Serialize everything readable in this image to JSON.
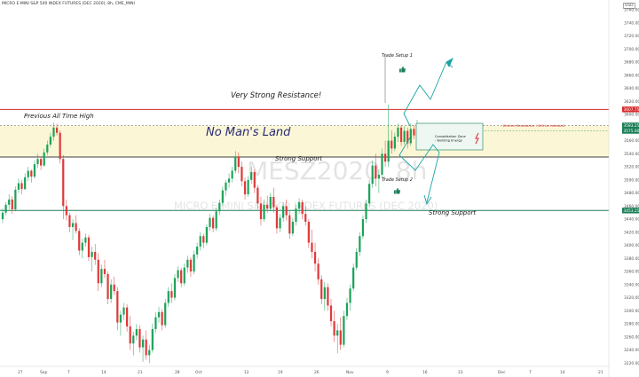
{
  "header": {
    "title": "MICRO E-MINI S&P 500 INDEX FUTURES (DEC 2020), 8h, CME_MINI",
    "currency": "USD"
  },
  "watermark": {
    "symbol": "MESZ2020, 8h",
    "name": "MICRO E-MINI S&P 500 INDEX FUTURES (DEC 2020)"
  },
  "chart_data": {
    "type": "candlestick",
    "y_ticks": [
      3220,
      3240,
      3260,
      3280,
      3300,
      3320,
      3340,
      3360,
      3380,
      3400,
      3420,
      3440,
      3460,
      3480,
      3500,
      3520,
      3540,
      3560,
      3580,
      3600,
      3620,
      3640,
      3660,
      3680,
      3700,
      3720,
      3740,
      3760
    ],
    "ylim": [
      3215,
      3775
    ],
    "x_tick_labels": [
      "27",
      "Sep",
      "7",
      "14",
      "21",
      "28",
      "Oct",
      "12",
      "19",
      "26",
      "Nov",
      "9",
      "16",
      "23",
      "Dec",
      "7",
      "14",
      "21"
    ],
    "price_tags": [
      {
        "value": "3607.75",
        "price": 3607.75,
        "color": "#d62b2b"
      },
      {
        "value": "3583.25",
        "price": 3583.25,
        "color": "#1b7d56"
      },
      {
        "value": "3575.00",
        "price": 3575.0,
        "color": "#1b7d56"
      },
      {
        "value": "3453.25",
        "price": 3453.25,
        "color": "#1b7d56"
      }
    ],
    "levels": [
      {
        "label": "Very Strong Resistance!",
        "price": 3607.75,
        "color": "#d62b2b"
      },
      {
        "label": "Strong Support",
        "price": 3535,
        "color": "#000000"
      },
      {
        "label": "Strong Support",
        "price": 3453.25,
        "color": "#1b7d56"
      }
    ],
    "zone": {
      "label": "No Man's Land",
      "top": 3583,
      "bottom": 3535
    },
    "annotations": {
      "all_time_high": "Previous All Time High",
      "trade_setup_1": "Trade Setup 1",
      "trade_setup_2": "Trade Setup 2",
      "broken_resistance": "Broken Resistance - Will be retested",
      "consolidation_line1": "Consolidation Zone",
      "consolidation_line2": "- Building Energy"
    },
    "colors": {
      "up": "#1ea35a",
      "down": "#e03a3a"
    },
    "ohlc": [
      [
        3440,
        3456,
        3434,
        3450
      ],
      [
        3450,
        3466,
        3446,
        3462
      ],
      [
        3462,
        3478,
        3455,
        3470
      ],
      [
        3470,
        3475,
        3448,
        3455
      ],
      [
        3455,
        3490,
        3452,
        3485
      ],
      [
        3485,
        3502,
        3480,
        3495
      ],
      [
        3495,
        3500,
        3478,
        3486
      ],
      [
        3486,
        3510,
        3484,
        3504
      ],
      [
        3504,
        3520,
        3498,
        3514
      ],
      [
        3514,
        3516,
        3496,
        3505
      ],
      [
        3505,
        3530,
        3502,
        3524
      ],
      [
        3524,
        3540,
        3518,
        3532
      ],
      [
        3532,
        3535,
        3515,
        3522
      ],
      [
        3522,
        3548,
        3520,
        3542
      ],
      [
        3542,
        3560,
        3538,
        3554
      ],
      [
        3554,
        3572,
        3550,
        3566
      ],
      [
        3566,
        3588,
        3560,
        3580
      ],
      [
        3580,
        3586,
        3568,
        3572
      ],
      [
        3572,
        3576,
        3525,
        3532
      ],
      [
        3532,
        3538,
        3440,
        3460
      ],
      [
        3460,
        3470,
        3438,
        3446
      ],
      [
        3446,
        3450,
        3420,
        3428
      ],
      [
        3428,
        3440,
        3408,
        3434
      ],
      [
        3434,
        3446,
        3418,
        3422
      ],
      [
        3422,
        3426,
        3385,
        3392
      ],
      [
        3392,
        3410,
        3380,
        3404
      ],
      [
        3404,
        3418,
        3398,
        3412
      ],
      [
        3412,
        3416,
        3376,
        3382
      ],
      [
        3382,
        3398,
        3360,
        3390
      ],
      [
        3390,
        3402,
        3370,
        3378
      ],
      [
        3378,
        3388,
        3330,
        3342
      ],
      [
        3342,
        3370,
        3336,
        3364
      ],
      [
        3364,
        3378,
        3350,
        3356
      ],
      [
        3356,
        3360,
        3310,
        3318
      ],
      [
        3318,
        3348,
        3312,
        3340
      ],
      [
        3340,
        3352,
        3324,
        3330
      ],
      [
        3330,
        3336,
        3270,
        3282
      ],
      [
        3282,
        3300,
        3262,
        3294
      ],
      [
        3294,
        3312,
        3286,
        3305
      ],
      [
        3305,
        3310,
        3268,
        3276
      ],
      [
        3276,
        3292,
        3240,
        3250
      ],
      [
        3250,
        3268,
        3232,
        3262
      ],
      [
        3262,
        3280,
        3255,
        3272
      ],
      [
        3272,
        3278,
        3236,
        3244
      ],
      [
        3244,
        3262,
        3222,
        3256
      ],
      [
        3256,
        3270,
        3225,
        3232
      ],
      [
        3232,
        3248,
        3220,
        3240
      ],
      [
        3240,
        3280,
        3236,
        3272
      ],
      [
        3272,
        3298,
        3266,
        3290
      ],
      [
        3290,
        3306,
        3282,
        3298
      ],
      [
        3298,
        3302,
        3270,
        3278
      ],
      [
        3278,
        3318,
        3274,
        3312
      ],
      [
        3312,
        3336,
        3306,
        3330
      ],
      [
        3330,
        3342,
        3312,
        3320
      ],
      [
        3320,
        3356,
        3316,
        3350
      ],
      [
        3350,
        3368,
        3344,
        3362
      ],
      [
        3362,
        3366,
        3336,
        3342
      ],
      [
        3342,
        3372,
        3338,
        3366
      ],
      [
        3366,
        3384,
        3358,
        3378
      ],
      [
        3378,
        3382,
        3352,
        3360
      ],
      [
        3360,
        3392,
        3356,
        3386
      ],
      [
        3386,
        3404,
        3380,
        3398
      ],
      [
        3398,
        3420,
        3392,
        3414
      ],
      [
        3414,
        3418,
        3396,
        3404
      ],
      [
        3404,
        3432,
        3400,
        3428
      ],
      [
        3428,
        3448,
        3422,
        3442
      ],
      [
        3442,
        3446,
        3420,
        3426
      ],
      [
        3426,
        3458,
        3422,
        3452
      ],
      [
        3452,
        3470,
        3446,
        3465
      ],
      [
        3465,
        3490,
        3460,
        3484
      ],
      [
        3484,
        3500,
        3476,
        3496
      ],
      [
        3496,
        3510,
        3488,
        3502
      ],
      [
        3502,
        3520,
        3496,
        3514
      ],
      [
        3514,
        3544,
        3510,
        3536
      ],
      [
        3536,
        3542,
        3510,
        3520
      ],
      [
        3520,
        3528,
        3490,
        3498
      ],
      [
        3498,
        3504,
        3470,
        3478
      ],
      [
        3478,
        3506,
        3474,
        3500
      ],
      [
        3500,
        3520,
        3494,
        3512
      ],
      [
        3512,
        3516,
        3480,
        3488
      ],
      [
        3488,
        3492,
        3456,
        3464
      ],
      [
        3464,
        3474,
        3430,
        3440
      ],
      [
        3440,
        3470,
        3436,
        3462
      ],
      [
        3462,
        3476,
        3450,
        3456
      ],
      [
        3456,
        3480,
        3452,
        3474
      ],
      [
        3474,
        3488,
        3450,
        3458
      ],
      [
        3458,
        3462,
        3418,
        3426
      ],
      [
        3426,
        3448,
        3420,
        3442
      ],
      [
        3442,
        3466,
        3436,
        3460
      ],
      [
        3460,
        3470,
        3438,
        3446
      ],
      [
        3446,
        3452,
        3410,
        3418
      ],
      [
        3418,
        3442,
        3414,
        3436
      ],
      [
        3436,
        3462,
        3430,
        3456
      ],
      [
        3456,
        3472,
        3448,
        3466
      ],
      [
        3466,
        3470,
        3440,
        3448
      ],
      [
        3448,
        3460,
        3430,
        3436
      ],
      [
        3436,
        3440,
        3396,
        3404
      ],
      [
        3404,
        3424,
        3380,
        3390
      ],
      [
        3390,
        3404,
        3360,
        3372
      ],
      [
        3372,
        3380,
        3340,
        3348
      ],
      [
        3348,
        3354,
        3310,
        3318
      ],
      [
        3318,
        3344,
        3300,
        3336
      ],
      [
        3336,
        3342,
        3300,
        3308
      ],
      [
        3308,
        3318,
        3276,
        3284
      ],
      [
        3284,
        3300,
        3252,
        3262
      ],
      [
        3262,
        3280,
        3235,
        3270
      ],
      [
        3270,
        3290,
        3240,
        3248
      ],
      [
        3248,
        3300,
        3244,
        3292
      ],
      [
        3292,
        3320,
        3286,
        3312
      ],
      [
        3312,
        3340,
        3300,
        3334
      ],
      [
        3334,
        3372,
        3330,
        3366
      ],
      [
        3366,
        3396,
        3362,
        3390
      ],
      [
        3390,
        3420,
        3384,
        3414
      ],
      [
        3414,
        3446,
        3410,
        3440
      ],
      [
        3440,
        3470,
        3434,
        3464
      ],
      [
        3464,
        3500,
        3458,
        3494
      ],
      [
        3494,
        3530,
        3488,
        3522
      ],
      [
        3522,
        3540,
        3490,
        3502
      ],
      [
        3502,
        3516,
        3480,
        3508
      ],
      [
        3508,
        3548,
        3504,
        3540
      ],
      [
        3540,
        3560,
        3520,
        3528
      ],
      [
        3528,
        3615,
        3520,
        3560
      ],
      [
        3560,
        3576,
        3540,
        3548
      ],
      [
        3548,
        3572,
        3544,
        3566
      ],
      [
        3566,
        3586,
        3558,
        3580
      ],
      [
        3580,
        3584,
        3552,
        3558
      ],
      [
        3558,
        3582,
        3554,
        3575
      ],
      [
        3575,
        3580,
        3548,
        3556
      ],
      [
        3556,
        3586,
        3552,
        3578
      ],
      [
        3578,
        3584,
        3562,
        3568
      ],
      [
        3568,
        3592,
        3564,
        3585
      ]
    ],
    "title": "",
    "xlabel": "",
    "ylabel": ""
  }
}
